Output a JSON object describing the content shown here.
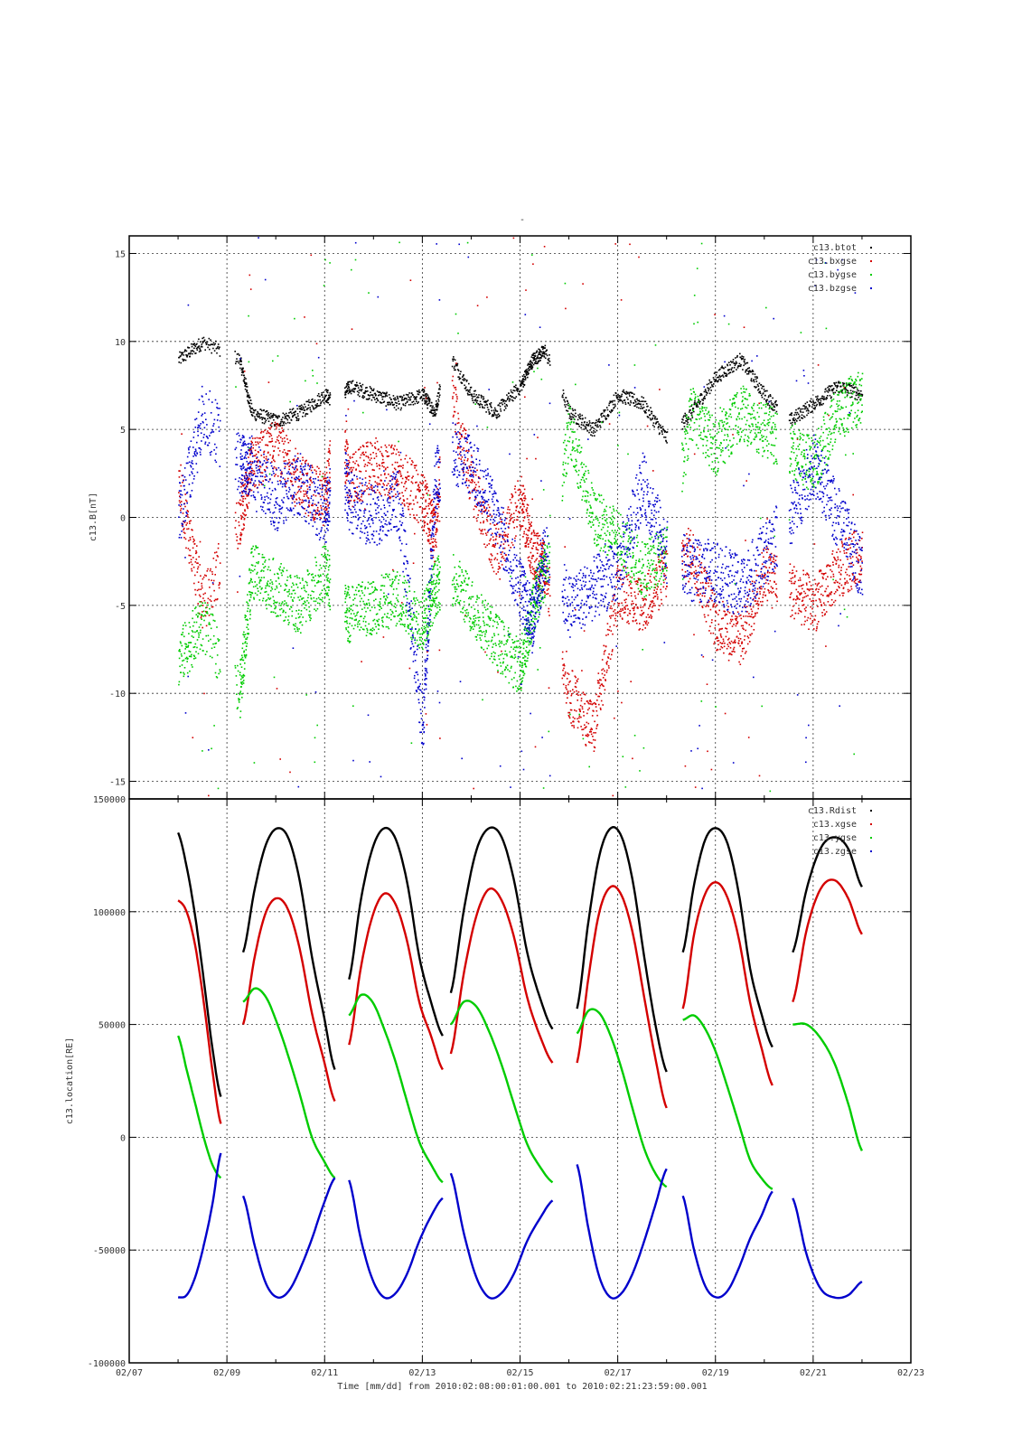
{
  "figure": {
    "title": "-",
    "xlabel": "Time [mm/dd]  from 2010:02:08:00:01:00.001  to  2010:02:21:23:59:00.001",
    "x_ticks": [
      "02/07",
      "02/09",
      "02/11",
      "02/13",
      "02/15",
      "02/17",
      "02/19",
      "02/21",
      "02/23"
    ]
  },
  "chart_data": [
    {
      "type": "scatter",
      "ylabel": "c13.B[nT]",
      "xlim": [
        "2010-02-07",
        "2010-02-23"
      ],
      "ylim": [
        -16,
        16
      ],
      "y_ticks": [
        "15",
        "10",
        "5",
        "0",
        "-5",
        "-10",
        "-15"
      ],
      "y_tick_values": [
        15,
        10,
        5,
        0,
        -5,
        -10,
        -15
      ],
      "legend_position": "top-right",
      "data_gaps_days": [
        [
          8.85,
          9.15
        ],
        [
          11.1,
          11.4
        ],
        [
          13.35,
          13.6
        ],
        [
          15.6,
          15.85
        ],
        [
          18.0,
          18.3
        ],
        [
          20.25,
          20.5
        ]
      ],
      "colors": {
        "btot": "#000000",
        "bxgse": "#d40000",
        "bygse": "#00cc00",
        "bzgse": "#0000cc"
      },
      "series": [
        {
          "name": "c13.btot",
          "x": [
            "02/08 00:00",
            "02/08 12:00",
            "02/09 06:00",
            "02/09 12:00",
            "02/10 00:00",
            "02/10 12:00",
            "02/11 00:00",
            "02/11 06:00",
            "02/11 12:00",
            "02/12 00:00",
            "02/12 12:00",
            "02/13 00:00",
            "02/13 06:00",
            "02/13 12:00",
            "02/14 00:00",
            "02/14 12:00",
            "02/15 00:00",
            "02/15 06:00",
            "02/15 12:00",
            "02/16 00:00",
            "02/16 12:00",
            "02/17 00:00",
            "02/17 12:00",
            "02/18 00:00",
            "02/18 12:00",
            "02/19 00:00",
            "02/19 12:00",
            "02/20 00:00",
            "02/20 12:00",
            "02/21 00:00",
            "02/21 12:00",
            "02/22 00:00"
          ],
          "values": [
            9,
            10,
            9,
            6,
            5.5,
            6,
            7,
            6.5,
            7.5,
            7,
            6.5,
            7,
            6,
            9.5,
            7,
            6,
            7.5,
            9,
            9.5,
            6,
            5,
            7,
            6.5,
            4.5,
            6,
            8,
            9,
            7,
            5.5,
            6.5,
            7.5,
            7
          ]
        },
        {
          "name": "c13.bxgse",
          "x": [
            "02/08 00:00",
            "02/08 12:00",
            "02/09 06:00",
            "02/09 12:00",
            "02/10 00:00",
            "02/10 12:00",
            "02/11 00:00",
            "02/11 06:00",
            "02/11 12:00",
            "02/12 00:00",
            "02/12 12:00",
            "02/13 00:00",
            "02/13 06:00",
            "02/13 12:00",
            "02/14 00:00",
            "02/14 12:00",
            "02/15 00:00",
            "02/15 06:00",
            "02/15 12:00",
            "02/16 00:00",
            "02/16 12:00",
            "02/17 00:00",
            "02/17 12:00",
            "02/18 00:00",
            "02/18 12:00",
            "02/19 00:00",
            "02/19 12:00",
            "02/20 00:00",
            "02/20 12:00",
            "02/21 00:00",
            "02/21 12:00",
            "02/22 00:00"
          ],
          "values": [
            2,
            -5,
            0,
            3,
            4,
            2,
            1,
            6,
            2,
            3,
            2.5,
            1,
            -1,
            8,
            2,
            -2,
            1,
            -2,
            -3,
            -10,
            -12,
            -4,
            -5,
            -3,
            -2,
            -6,
            -7,
            -3,
            -4,
            -5,
            -3,
            -2
          ]
        },
        {
          "name": "c13.bygse",
          "x": [
            "02/08 00:00",
            "02/08 12:00",
            "02/09 06:00",
            "02/09 12:00",
            "02/10 00:00",
            "02/10 12:00",
            "02/11 00:00",
            "02/11 06:00",
            "02/11 12:00",
            "02/12 00:00",
            "02/12 12:00",
            "02/13 00:00",
            "02/13 06:00",
            "02/13 12:00",
            "02/14 00:00",
            "02/14 12:00",
            "02/15 00:00",
            "02/15 06:00",
            "02/15 12:00",
            "02/16 00:00",
            "02/16 12:00",
            "02/17 00:00",
            "02/17 12:00",
            "02/18 00:00",
            "02/18 12:00",
            "02/19 00:00",
            "02/19 12:00",
            "02/20 00:00",
            "02/20 12:00",
            "02/21 00:00",
            "02/21 12:00",
            "02/22 00:00"
          ],
          "values": [
            -8,
            -6,
            -10,
            -3,
            -4,
            -5,
            -3,
            -5,
            -5.5,
            -5,
            -4.5,
            -6,
            -4,
            -3,
            -5,
            -7,
            -8.5,
            -5,
            -3,
            5,
            0,
            -1,
            -3,
            -2,
            6,
            4,
            6,
            5,
            4,
            3,
            6,
            7
          ]
        },
        {
          "name": "c13.bzgse",
          "x": [
            "02/08 00:00",
            "02/08 12:00",
            "02/09 06:00",
            "02/09 12:00",
            "02/10 00:00",
            "02/10 12:00",
            "02/11 00:00",
            "02/11 06:00",
            "02/11 12:00",
            "02/12 00:00",
            "02/12 12:00",
            "02/13 00:00",
            "02/13 06:00",
            "02/13 12:00",
            "02/14 00:00",
            "02/14 12:00",
            "02/15 00:00",
            "02/15 06:00",
            "02/15 12:00",
            "02/16 00:00",
            "02/16 12:00",
            "02/17 00:00",
            "02/17 12:00",
            "02/18 00:00",
            "02/18 12:00",
            "02/19 00:00",
            "02/19 12:00",
            "02/20 00:00",
            "02/20 12:00",
            "02/21 00:00",
            "02/21 12:00",
            "02/22 00:00"
          ],
          "values": [
            0,
            6,
            3,
            3,
            1,
            2,
            0,
            4,
            1,
            0,
            1,
            -12,
            2,
            4,
            3,
            0,
            -4,
            -6,
            -2,
            -5,
            -4,
            -3,
            2,
            -2,
            -3,
            -3,
            -4,
            -2,
            0,
            3,
            0,
            -3
          ]
        }
      ]
    },
    {
      "type": "scatter",
      "ylabel": "c13.location[RE]",
      "xlim": [
        "2010-02-07",
        "2010-02-23"
      ],
      "ylim": [
        -100000,
        150000
      ],
      "y_ticks": [
        "150000",
        "100000",
        "50000",
        "0",
        "-50000",
        "-100000"
      ],
      "y_tick_values": [
        150000,
        100000,
        50000,
        0,
        -50000,
        -100000
      ],
      "legend_position": "top-right",
      "colors": {
        "Rdist": "#000000",
        "xgse": "#d40000",
        "ygse": "#00cc00",
        "zgse": "#0000cc"
      },
      "orbits": [
        {
          "start": "02/08 00:00",
          "end": "02/08 21:00",
          "Rdist": [
            135000,
            120000,
            98000,
            70000,
            40000,
            18000
          ],
          "xgse": [
            105000,
            100000,
            85000,
            60000,
            30000,
            6000
          ],
          "ygse": [
            45000,
            30000,
            15000,
            0,
            -12000,
            -18000
          ],
          "zgse": [
            -71000,
            -70000,
            -62000,
            -48000,
            -30000,
            -7000
          ]
        },
        {
          "start": "02/09 08:00",
          "end": "02/11 05:00",
          "Rdist": [
            82000,
            110000,
            130000,
            137000,
            132000,
            112000,
            80000,
            55000,
            30000
          ],
          "xgse": [
            50000,
            80000,
            100000,
            106000,
            100000,
            82000,
            55000,
            35000,
            16000
          ],
          "ygse": [
            60000,
            66000,
            62000,
            50000,
            35000,
            18000,
            0,
            -10000,
            -18000
          ],
          "zgse": [
            -26000,
            -48000,
            -65000,
            -71000,
            -68000,
            -58000,
            -45000,
            -30000,
            -18000
          ]
        },
        {
          "start": "02/11 12:00",
          "end": "02/13 10:00",
          "Rdist": [
            70000,
            105000,
            128000,
            137000,
            132000,
            112000,
            80000,
            60000,
            45000
          ],
          "xgse": [
            41000,
            75000,
            98000,
            108000,
            103000,
            86000,
            60000,
            45000,
            30000
          ],
          "ygse": [
            54000,
            63000,
            60000,
            48000,
            33000,
            15000,
            -2000,
            -12000,
            -20000
          ],
          "zgse": [
            -19000,
            -45000,
            -63000,
            -71000,
            -69000,
            -60000,
            -46000,
            -35000,
            -27000
          ]
        },
        {
          "start": "02/13 14:00",
          "end": "02/15 16:00",
          "Rdist": [
            64000,
            100000,
            127000,
            137000,
            133000,
            113000,
            82000,
            62000,
            48000
          ],
          "xgse": [
            37000,
            72000,
            98000,
            110000,
            105000,
            88000,
            62000,
            45000,
            33000
          ],
          "ygse": [
            50000,
            60000,
            58000,
            47000,
            32000,
            14000,
            -3000,
            -13000,
            -20000
          ],
          "zgse": [
            -16000,
            -42000,
            -62000,
            -71000,
            -69000,
            -60000,
            -46000,
            -36000,
            -28000
          ]
        },
        {
          "start": "02/16 04:00",
          "end": "02/18 00:00",
          "Rdist": [
            57000,
            95000,
            125000,
            137000,
            133000,
            113000,
            80000,
            50000,
            29000
          ],
          "xgse": [
            33000,
            70000,
            100000,
            111000,
            107000,
            90000,
            62000,
            35000,
            13000
          ],
          "ygse": [
            46000,
            56000,
            55000,
            45000,
            30000,
            12000,
            -5000,
            -16000,
            -22000
          ],
          "zgse": [
            -12000,
            -40000,
            -62000,
            -71000,
            -69000,
            -60000,
            -46000,
            -30000,
            -14000
          ]
        },
        {
          "start": "02/18 08:00",
          "end": "02/20 04:00",
          "Rdist": [
            82000,
            112000,
            132000,
            137000,
            130000,
            108000,
            75000,
            55000,
            40000
          ],
          "xgse": [
            57000,
            90000,
            108000,
            113000,
            106000,
            88000,
            60000,
            40000,
            23000
          ],
          "ygse": [
            52000,
            54000,
            48000,
            37000,
            22000,
            6000,
            -10000,
            -18000,
            -23000
          ],
          "zgse": [
            -26000,
            -50000,
            -66000,
            -71000,
            -68000,
            -58000,
            -45000,
            -35000,
            -24000
          ]
        },
        {
          "start": "02/20 14:00",
          "end": "02/22 00:00",
          "Rdist": [
            82000,
            110000,
            128000,
            133000,
            128000,
            111000
          ],
          "xgse": [
            60000,
            92000,
            110000,
            114000,
            106000,
            90000
          ],
          "ygse": [
            50000,
            50000,
            44000,
            33000,
            15000,
            -6000
          ],
          "zgse": [
            -27000,
            -52000,
            -67000,
            -71000,
            -70000,
            -64000
          ]
        }
      ],
      "series": [
        {
          "name": "c13.Rdist"
        },
        {
          "name": "c13.xgse"
        },
        {
          "name": "c13.ygse"
        },
        {
          "name": "c13.zgse"
        }
      ]
    }
  ]
}
